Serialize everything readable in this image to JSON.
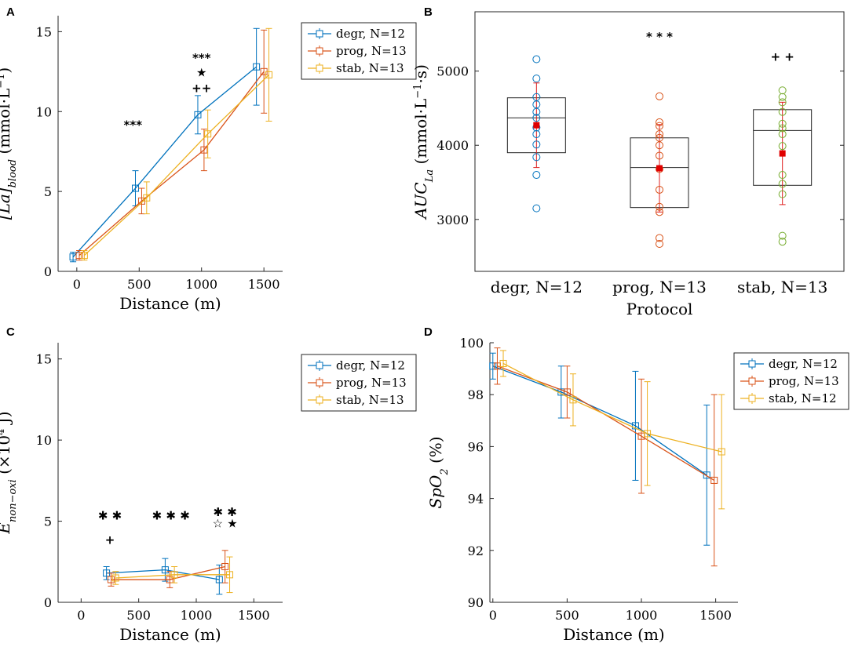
{
  "chart_data": [
    {
      "panel": "A",
      "type": "line",
      "ylabel": "[La]blood (mmol·L⁻¹)",
      "ylabel_main": "[La]",
      "ylabel_sub": "blood",
      "ylabel_unit": " (mmol·L",
      "ylabel_sup": "−1",
      "ylabel_end": ")",
      "xlabel": "Distance (m)",
      "xlim": [
        -150,
        1650
      ],
      "ylim": [
        0,
        16
      ],
      "xticks": [
        0,
        500,
        1000,
        1500
      ],
      "yticks": [
        0,
        5,
        10,
        15
      ],
      "series": [
        {
          "name": "degr, N=12",
          "color": "#0072BD",
          "x": [
            -30,
            470,
            970,
            1440
          ],
          "y": [
            0.9,
            5.2,
            9.8,
            12.8
          ],
          "err": [
            0.3,
            1.1,
            1.2,
            2.4
          ]
        },
        {
          "name": "prog, N=13",
          "color": "#D95319",
          "x": [
            20,
            520,
            1020,
            1500
          ],
          "y": [
            1.0,
            4.4,
            7.6,
            12.5
          ],
          "err": [
            0.3,
            0.8,
            1.3,
            2.6
          ]
        },
        {
          "name": "stab, N=13",
          "color": "#EDB120",
          "x": [
            60,
            560,
            1050,
            1540
          ],
          "y": [
            1.0,
            4.6,
            8.6,
            12.3
          ],
          "err": [
            0.3,
            1.0,
            1.5,
            2.9
          ]
        }
      ],
      "annotations": [
        {
          "text": "***",
          "x": 450,
          "y": 9.2
        },
        {
          "text": "***",
          "x": 1000,
          "y": 13.4
        },
        {
          "text": "★",
          "x": 1000,
          "y": 12.5
        },
        {
          "text": "++",
          "x": 1000,
          "y": 11.5
        }
      ]
    },
    {
      "panel": "B",
      "type": "box",
      "ylabel": "AUCLa (mmol·L⁻¹·s)",
      "ylabel_main": "AUC",
      "ylabel_sub": "La",
      "ylabel_unit": " (mmol·L",
      "ylabel_sup": "−1",
      "ylabel_end": "·s)",
      "xlabel": "Protocol",
      "categories": [
        "degr, N=12",
        "prog, N=13",
        "stab, N=13"
      ],
      "ylim": [
        2300,
        5800
      ],
      "yticks": [
        3000,
        4000,
        5000
      ],
      "boxes": [
        {
          "q1": 3900,
          "median": 4370,
          "q3": 4640,
          "mean": 4270,
          "sd_low": 3700,
          "sd_high": 4840,
          "color": "#0072BD",
          "points": [
            3150,
            3600,
            3840,
            4010,
            4150,
            4240,
            4370,
            4450,
            4550,
            4650,
            4900,
            5160
          ]
        },
        {
          "q1": 3160,
          "median": 3700,
          "q3": 4100,
          "mean": 3690,
          "sd_low": 3100,
          "sd_high": 4280,
          "color": "#D95319",
          "points": [
            2670,
            2750,
            3100,
            3170,
            3400,
            3680,
            3860,
            4000,
            4100,
            4150,
            4260,
            4310,
            4660
          ]
        },
        {
          "q1": 3460,
          "median": 4200,
          "q3": 4480,
          "mean": 3890,
          "sd_low": 3200,
          "sd_high": 4580,
          "color": "#77AC30",
          "points": [
            2700,
            2780,
            3340,
            3480,
            3600,
            3990,
            4150,
            4230,
            4290,
            4450,
            4580,
            4650,
            4740
          ]
        }
      ],
      "annotations": [
        {
          "text": "* * *",
          "cat": 1,
          "y": 5470
        },
        {
          "text": "+ +",
          "cat": 2,
          "y": 5200
        }
      ]
    },
    {
      "panel": "C",
      "type": "line",
      "ylabel": "Enon-oxi (×10⁴ J)",
      "ylabel_main": "E",
      "ylabel_sub": "non−oxi",
      "ylabel_unit": " (×10",
      "ylabel_sup": "4",
      "ylabel_end": " J)",
      "xlabel": "Distance (m)",
      "xlim": [
        -200,
        1750
      ],
      "ylim": [
        0,
        16
      ],
      "xticks": [
        0,
        500,
        1000,
        1500
      ],
      "yticks": [
        0,
        5,
        10,
        15
      ],
      "series": [
        {
          "name": "degr, N=12",
          "color": "#0072BD",
          "x": [
            220,
            730,
            1200
          ],
          "y": [
            1.8,
            2.0,
            1.4
          ],
          "err": [
            0.4,
            0.7,
            0.9
          ]
        },
        {
          "name": "prog, N=13",
          "color": "#D95319",
          "x": [
            260,
            770,
            1250
          ],
          "y": [
            1.4,
            1.4,
            2.2
          ],
          "err": [
            0.4,
            0.5,
            1.0
          ]
        },
        {
          "name": "stab, N=13",
          "color": "#EDB120",
          "x": [
            300,
            810,
            1290
          ],
          "y": [
            1.5,
            1.7,
            1.7
          ],
          "err": [
            0.4,
            0.5,
            1.1
          ]
        }
      ],
      "annotations": [
        {
          "text": "✱ ✱",
          "x": 250,
          "y": 5.4
        },
        {
          "text": "+",
          "x": 250,
          "y": 3.9
        },
        {
          "text": "✱ ✱ ✱",
          "x": 780,
          "y": 5.4
        },
        {
          "text": "✱ ✱",
          "x": 1250,
          "y": 5.6
        },
        {
          "text": "☆ ★",
          "x": 1250,
          "y": 4.9
        }
      ]
    },
    {
      "panel": "D",
      "type": "line",
      "ylabel": "SpO2 (%)",
      "ylabel_main": "SpO",
      "ylabel_sub": "2",
      "ylabel_unit": " (%)",
      "ylabel_sup": "",
      "ylabel_end": "",
      "xlabel": "Distance (m)",
      "xlim": [
        -20,
        1650
      ],
      "ylim": [
        90,
        100
      ],
      "xticks": [
        0,
        500,
        1000,
        1500
      ],
      "yticks": [
        90,
        92,
        94,
        96,
        98,
        100
      ],
      "series": [
        {
          "name": "degr, N=12",
          "color": "#0072BD",
          "x": [
            0,
            460,
            960,
            1440
          ],
          "y": [
            99.1,
            98.1,
            96.8,
            94.9
          ],
          "err": [
            0.5,
            1.0,
            2.1,
            2.7
          ]
        },
        {
          "name": "prog, N=13",
          "color": "#D95319",
          "x": [
            30,
            500,
            1000,
            1490
          ],
          "y": [
            99.1,
            98.1,
            96.4,
            94.7
          ],
          "err": [
            0.7,
            1.0,
            2.2,
            3.3
          ]
        },
        {
          "name": "stab, N=12",
          "color": "#EDB120",
          "x": [
            70,
            540,
            1040,
            1540
          ],
          "y": [
            99.2,
            97.8,
            96.5,
            95.8
          ],
          "err": [
            0.5,
            1.0,
            2.0,
            2.2
          ]
        }
      ],
      "annotations": []
    }
  ]
}
